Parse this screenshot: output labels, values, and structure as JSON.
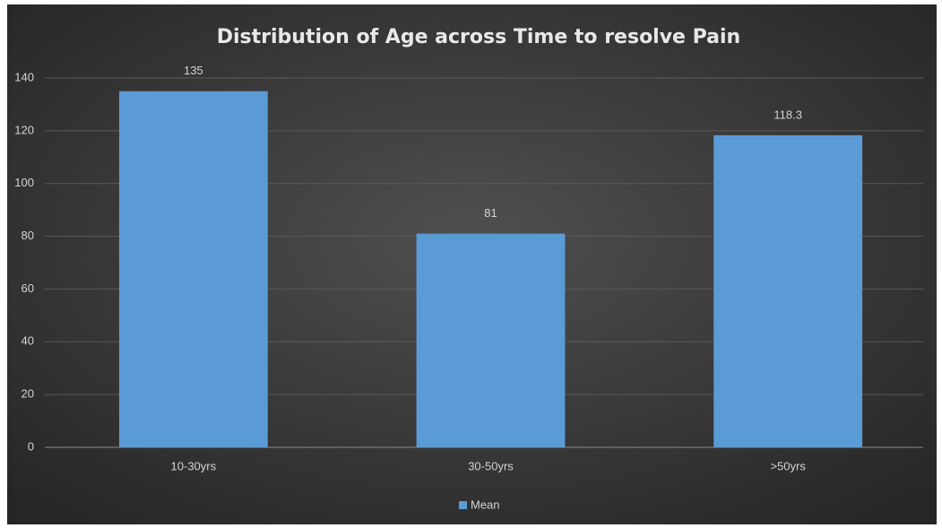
{
  "chart_data": {
    "type": "bar",
    "title": "Distribution of Age across Time to resolve Pain",
    "categories": [
      "10-30yrs",
      "30-50yrs",
      ">50yrs"
    ],
    "series": [
      {
        "name": "Mean",
        "color": "#5b9bd5",
        "values": [
          135,
          81,
          118.3
        ]
      }
    ],
    "ylim": [
      0,
      140
    ],
    "yticks": [
      0,
      20,
      40,
      60,
      80,
      100,
      120,
      140
    ],
    "grid": true,
    "legend": "bottom"
  }
}
